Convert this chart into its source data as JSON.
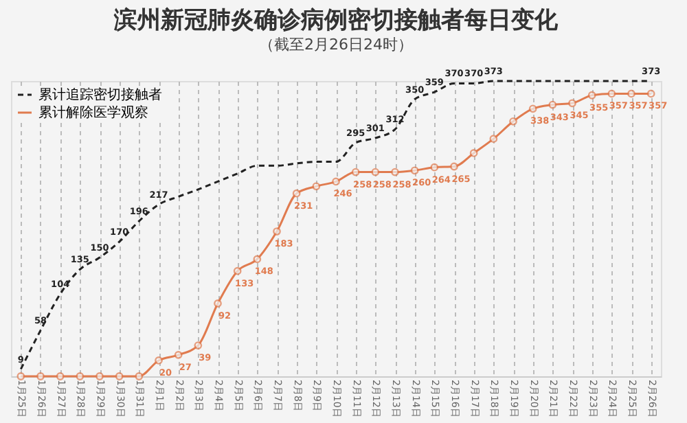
{
  "chart_data": {
    "type": "line",
    "title": "滨州新冠肺炎确诊病例密切接触者每日变化",
    "subtitle": "（截至2月26日24时）",
    "categories": [
      "1月25日",
      "1月26日",
      "1月27日",
      "1月28日",
      "1月29日",
      "1月30日",
      "1月31日",
      "2月1日",
      "2月2日",
      "2月3日",
      "2月4日",
      "2月5日",
      "2月6日",
      "2月7日",
      "2月8日",
      "2月9日",
      "2月10日",
      "2月11日",
      "2月12日",
      "2月13日",
      "2月14日",
      "2月15日",
      "2月16日",
      "2月17日",
      "2月18日",
      "2月19日",
      "2月20日",
      "2月21日",
      "2月22日",
      "2月23日",
      "2月24日",
      "2月25日",
      "2月26日"
    ],
    "series": [
      {
        "name": "累计追踪密切接触者",
        "color": "#222222",
        "line_style": "dashed",
        "marker": "none",
        "values": [
          9,
          58,
          104,
          135,
          150,
          170,
          196,
          217,
          227,
          236,
          246,
          256,
          266,
          266,
          269,
          271,
          271,
          295,
          301,
          312,
          350,
          359,
          370,
          370,
          373,
          373,
          373,
          373,
          373,
          373,
          373,
          373,
          373
        ],
        "value_labels": [
          "9",
          "58",
          "104",
          "135",
          "150",
          "170",
          "196",
          "217",
          null,
          null,
          null,
          null,
          null,
          null,
          null,
          null,
          null,
          "295",
          "301",
          "312",
          "350",
          "359",
          "370",
          "370",
          "373",
          null,
          null,
          null,
          null,
          null,
          null,
          null,
          "373"
        ]
      },
      {
        "name": "累计解除医学观察",
        "color": "#e07b4f",
        "line_style": "solid",
        "marker": "circle",
        "values": [
          0,
          0,
          0,
          0,
          0,
          0,
          0,
          20,
          27,
          39,
          92,
          133,
          148,
          183,
          231,
          240,
          246,
          258,
          258,
          258,
          260,
          264,
          265,
          282,
          300,
          322,
          338,
          343,
          345,
          355,
          357,
          357,
          357
        ],
        "value_labels": [
          null,
          null,
          null,
          null,
          null,
          null,
          null,
          "20",
          "27",
          "39",
          "92",
          "133",
          "148",
          "183",
          "231",
          null,
          "246",
          "258",
          "258",
          "258",
          "260",
          "264",
          "265",
          null,
          null,
          null,
          "338",
          "343",
          "345",
          "355",
          "357",
          "357",
          "357"
        ]
      }
    ],
    "grid": "x",
    "legend": "top left",
    "tick_labels": "x"
  }
}
